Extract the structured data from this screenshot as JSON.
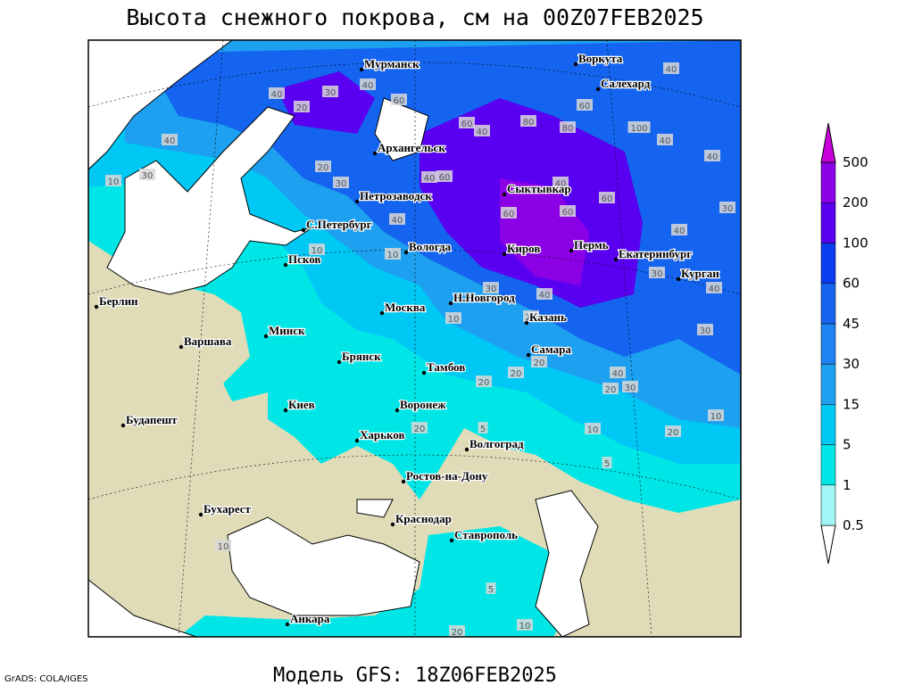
{
  "title": "Высота снежного покрова, см на 00Z07FEB2025",
  "footer_left": "GrADS: COLA/IGES",
  "footer_model": "Модель GFS: 18Z06FEB2025",
  "legend": {
    "levels": [
      0.5,
      1,
      5,
      15,
      30,
      45,
      60,
      100,
      200,
      500
    ],
    "colors": [
      "#ffffff",
      "#a0f5f5",
      "#00e6e6",
      "#00c8f5",
      "#1ea0f0",
      "#1e82f0",
      "#1464f0",
      "#0a3cf0",
      "#5a00f0",
      "#8c00e6",
      "#c800dc"
    ]
  },
  "land_color": "#e0dcb8",
  "cities": [
    "Мурманск",
    "Воркута",
    "Салехард",
    "Архангельск",
    "Сыктывкар",
    "Петрозаводск",
    "С.Петербург",
    "Вологда",
    "Киров",
    "Пермь",
    "Екатеринбург",
    "Курган",
    "Псков",
    "Н.Новгород",
    "Москва",
    "Казань",
    "Минск",
    "Берлин",
    "Варшава",
    "Брянск",
    "Самара",
    "Тамбов",
    "Киев",
    "Воронеж",
    "Будапешт",
    "Харьков",
    "Волгоград",
    "Ростов-на-Дону",
    "Бухарест",
    "Краснодар",
    "Ставрополь",
    "Анкара"
  ],
  "contour_labels": [
    "40",
    "20",
    "30",
    "40",
    "60",
    "40",
    "30",
    "10",
    "20",
    "30",
    "40",
    "60",
    "60",
    "40",
    "80",
    "80",
    "60",
    "100",
    "40",
    "40",
    "40",
    "30",
    "40",
    "60",
    "60",
    "60",
    "40",
    "40",
    "10",
    "10",
    "30",
    "40",
    "20",
    "30",
    "40",
    "30",
    "40",
    "20",
    "30",
    "20",
    "20",
    "20",
    "10",
    "10",
    "10",
    "20",
    "20",
    "5",
    "5",
    "10",
    "10",
    "5",
    "20"
  ]
}
